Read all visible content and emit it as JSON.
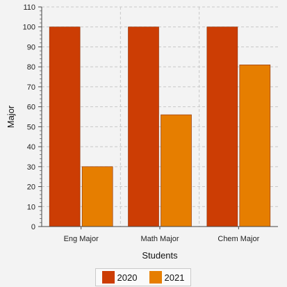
{
  "chart_data": {
    "type": "bar",
    "categories": [
      "Eng Major",
      "Math Major",
      "Chem Major"
    ],
    "series": [
      {
        "name": "2020",
        "values": [
          100,
          100,
          100
        ],
        "color": "#cc3d04"
      },
      {
        "name": "2021",
        "values": [
          30,
          56,
          81
        ],
        "color": "#e67e00"
      }
    ],
    "xlabel": "Students",
    "ylabel": "Major",
    "ylim": [
      0,
      110
    ],
    "yticks": [
      0,
      10,
      20,
      30,
      40,
      50,
      60,
      70,
      80,
      90,
      100,
      110
    ],
    "grid": true,
    "legend_position": "bottom"
  }
}
